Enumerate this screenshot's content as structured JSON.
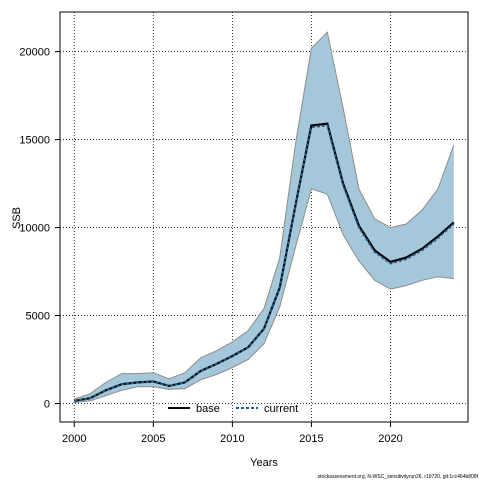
{
  "chart_data": {
    "type": "line",
    "xlabel": "Years",
    "ylabel": "SSB",
    "xlim": [
      1999.1,
      2024.9
    ],
    "ylim": [
      -1050,
      22250
    ],
    "x_ticks": [
      2000,
      2005,
      2010,
      2015,
      2020
    ],
    "y_ticks": [
      0,
      5000,
      10000,
      15000,
      20000
    ],
    "x_tick_labels": [
      "2000",
      "2005",
      "2010",
      "2015",
      "2020"
    ],
    "y_tick_labels": [
      "0",
      "5000",
      "10000",
      "15000",
      "20000"
    ],
    "grid": true,
    "grid_style": "dotted",
    "legend_position": "bottom-center",
    "colors": {
      "band_fill": "#a4c8da",
      "band_edge": "#8c8c8c",
      "base_line": "#000000",
      "current_line": "#1f5f8b"
    },
    "x": [
      2000,
      2001,
      2002,
      2003,
      2004,
      2005,
      2006,
      2007,
      2008,
      2009,
      2010,
      2011,
      2012,
      2013,
      2014,
      2015,
      2016,
      2017,
      2018,
      2019,
      2020,
      2021,
      2022,
      2023,
      2024
    ],
    "band": {
      "upper": [
        250,
        550,
        1200,
        1700,
        1700,
        1750,
        1400,
        1750,
        2600,
        3000,
        3500,
        4150,
        5400,
        8300,
        14800,
        20200,
        21100,
        16800,
        12200,
        10500,
        10000,
        10200,
        11000,
        12200,
        14700
      ],
      "lower": [
        50,
        150,
        450,
        750,
        950,
        950,
        800,
        850,
        1350,
        1650,
        2050,
        2500,
        3400,
        5500,
        8900,
        12200,
        11900,
        9600,
        8100,
        7000,
        6500,
        6700,
        7000,
        7200,
        7100
      ]
    },
    "series": [
      {
        "name": "base",
        "values": [
          150,
          300,
          750,
          1100,
          1200,
          1250,
          1000,
          1200,
          1850,
          2250,
          2700,
          3200,
          4250,
          6600,
          11300,
          15800,
          15900,
          12500,
          10100,
          8700,
          8050,
          8300,
          8800,
          9500,
          10300
        ]
      },
      {
        "name": "current",
        "values": [
          150,
          300,
          750,
          1100,
          1200,
          1250,
          1000,
          1200,
          1850,
          2250,
          2700,
          3200,
          4250,
          6600,
          11300,
          15700,
          15800,
          12400,
          10000,
          8600,
          7950,
          8200,
          8700,
          9400,
          10200
        ]
      }
    ]
  },
  "footer": "stockassessment.org, N-WSC_sensitivityrun26, r19720, git:1cc464b808f"
}
